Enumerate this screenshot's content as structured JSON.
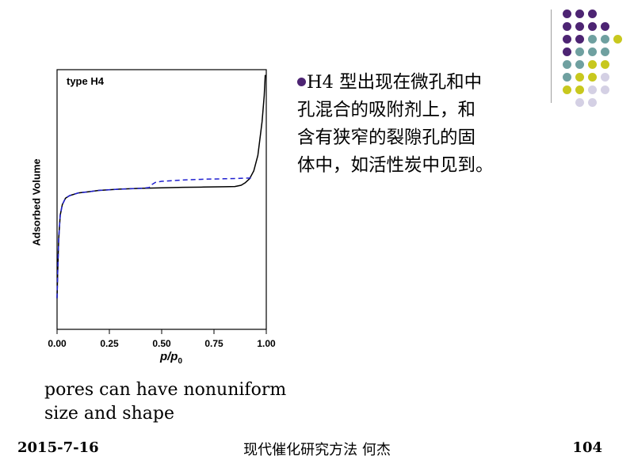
{
  "decoration": {
    "dot_colors": {
      "purple": "#4d2473",
      "teal": "#6fa0a0",
      "yellow": "#c8c81e",
      "lavender": "#d4d0e4"
    },
    "bullet_color": "#4d2473"
  },
  "chart_data": {
    "type": "line",
    "title": "type H4",
    "xlabel_main": "p/p",
    "xlabel_sub": "0",
    "ylabel": "Adsorbed Volume",
    "xlim": [
      0,
      1.0
    ],
    "ylim": [
      0,
      1.0
    ],
    "x_ticks": [
      0.0,
      0.25,
      0.5,
      0.75,
      1.0
    ],
    "x_tick_labels": [
      "0.00",
      "0.25",
      "0.50",
      "0.75",
      "1.00"
    ],
    "series": [
      {
        "style": "solid",
        "color": "#000000",
        "x": [
          0.0,
          0.003,
          0.008,
          0.015,
          0.025,
          0.04,
          0.06,
          0.1,
          0.15,
          0.2,
          0.3,
          0.4,
          0.5,
          0.6,
          0.7,
          0.8,
          0.85,
          0.88,
          0.9,
          0.92,
          0.94,
          0.96,
          0.98,
          0.99,
          0.995
        ],
        "y": [
          0.12,
          0.22,
          0.35,
          0.44,
          0.48,
          0.505,
          0.515,
          0.525,
          0.53,
          0.535,
          0.54,
          0.543,
          0.545,
          0.547,
          0.548,
          0.549,
          0.55,
          0.555,
          0.565,
          0.58,
          0.61,
          0.67,
          0.8,
          0.9,
          0.98
        ]
      },
      {
        "style": "dashed",
        "color": "#1f1fd0",
        "x": [
          0.0,
          0.003,
          0.008,
          0.015,
          0.025,
          0.04,
          0.06,
          0.1,
          0.15,
          0.2,
          0.3,
          0.4,
          0.44,
          0.45,
          0.47,
          0.5,
          0.6,
          0.7,
          0.8,
          0.9,
          0.93
        ],
        "y": [
          0.12,
          0.22,
          0.35,
          0.44,
          0.48,
          0.505,
          0.515,
          0.525,
          0.53,
          0.535,
          0.54,
          0.543,
          0.546,
          0.556,
          0.566,
          0.57,
          0.575,
          0.578,
          0.58,
          0.582,
          0.583
        ]
      }
    ],
    "grid": false,
    "legend": "none"
  },
  "text": {
    "line1": "H4 型出现在微孔和中",
    "line2": "孔混合的吸附剂上，和",
    "line3": "含有狭窄的裂隙孔的固",
    "line4": "体中，如活性炭中见到。"
  },
  "caption": {
    "line1": "pores can have nonuniform",
    "line2": "size and shape"
  },
  "footer": {
    "date": "2015-7-16",
    "center": "现代催化研究方法  何杰",
    "page": "104"
  }
}
